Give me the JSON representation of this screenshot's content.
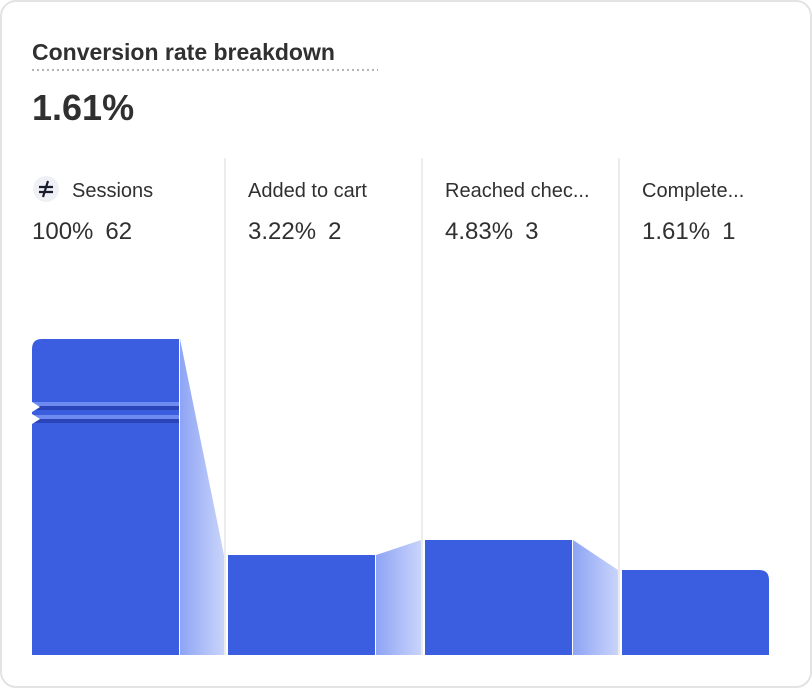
{
  "chart_data": {
    "type": "funnel",
    "title": "Conversion rate breakdown",
    "headline": "1.61%",
    "categories": [
      "Sessions",
      "Added to cart",
      "Reached chec...",
      "Complete..."
    ],
    "values": [
      100,
      3.22,
      4.83,
      1.61
    ],
    "value_labels": [
      "100%",
      "3.22%",
      "4.83%",
      "1.61%"
    ],
    "counts": [
      62,
      2,
      3,
      1
    ],
    "color": "#3b5ee0"
  }
}
